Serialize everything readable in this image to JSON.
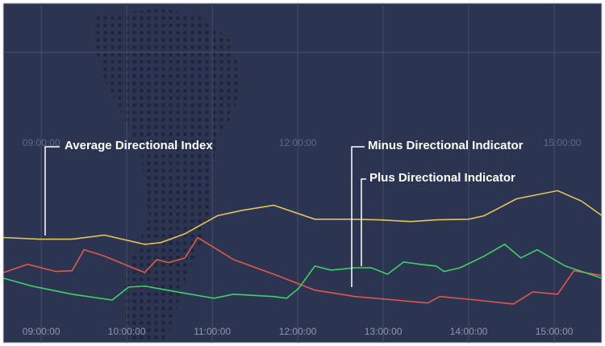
{
  "chart_data": {
    "type": "line",
    "xticks": [
      {
        "value": 9,
        "label": "09:00:00"
      },
      {
        "value": 10,
        "label": "10:00:00"
      },
      {
        "value": 11,
        "label": "11:00:00"
      },
      {
        "value": 12,
        "label": "12:00:00"
      },
      {
        "value": 13,
        "label": "13:00:00"
      },
      {
        "value": 14,
        "label": "14:00:00"
      },
      {
        "value": 15,
        "label": "15:00:00"
      }
    ],
    "xlim": [
      8.555,
      15.556
    ],
    "ylim": [
      0,
      100
    ],
    "grid": true,
    "annotations": [
      "Average Directional Index",
      "Minus Directional Indicator",
      "Plus Directional Indicator"
    ],
    "series": [
      {
        "name": "Average Directional Index",
        "color": "#e6c35c",
        "x": [
          8.56,
          8.98,
          9.36,
          9.74,
          10.21,
          10.4,
          10.68,
          11.06,
          11.35,
          11.72,
          12.2,
          12.58,
          12.95,
          13.33,
          13.62,
          14.0,
          14.18,
          14.56,
          15.04,
          15.32,
          15.56
        ],
        "values": [
          31.0,
          30.5,
          30.5,
          31.7,
          29.0,
          29.5,
          32.1,
          37.4,
          39.0,
          40.5,
          36.4,
          36.4,
          36.2,
          35.7,
          36.2,
          36.4,
          37.4,
          42.4,
          44.8,
          41.7,
          37.4
        ]
      },
      {
        "name": "Minus Directional Indicator",
        "color": "#e0584b",
        "x": [
          8.56,
          8.84,
          9.17,
          9.36,
          9.5,
          9.74,
          10.02,
          10.21,
          10.35,
          10.49,
          10.68,
          10.83,
          11.25,
          11.72,
          12.2,
          12.67,
          13.14,
          13.52,
          13.66,
          14.09,
          14.52,
          14.75,
          15.04,
          15.23,
          15.56
        ],
        "values": [
          20.7,
          23.1,
          21.0,
          21.2,
          27.4,
          25.5,
          22.6,
          20.7,
          24.5,
          23.6,
          25.0,
          31.0,
          24.5,
          20.2,
          15.5,
          13.6,
          12.6,
          11.7,
          13.6,
          12.6,
          11.4,
          15.0,
          14.3,
          21.2,
          19.8
        ]
      },
      {
        "name": "Plus Directional Indicator",
        "color": "#3fd068",
        "x": [
          8.56,
          8.89,
          9.36,
          9.83,
          10.02,
          10.21,
          10.59,
          11.02,
          11.25,
          11.72,
          11.87,
          12.01,
          12.2,
          12.39,
          12.67,
          12.86,
          13.05,
          13.24,
          13.43,
          13.62,
          13.71,
          13.9,
          14.18,
          14.42,
          14.61,
          14.8,
          15.13,
          15.56
        ],
        "values": [
          19.0,
          16.7,
          14.3,
          12.6,
          16.4,
          16.7,
          15.0,
          13.1,
          14.3,
          13.6,
          13.1,
          16.0,
          22.6,
          21.4,
          22.1,
          22.1,
          20.2,
          23.8,
          23.1,
          22.6,
          21.0,
          22.1,
          25.5,
          29.0,
          25.0,
          27.4,
          22.6,
          19.0
        ]
      }
    ]
  }
}
